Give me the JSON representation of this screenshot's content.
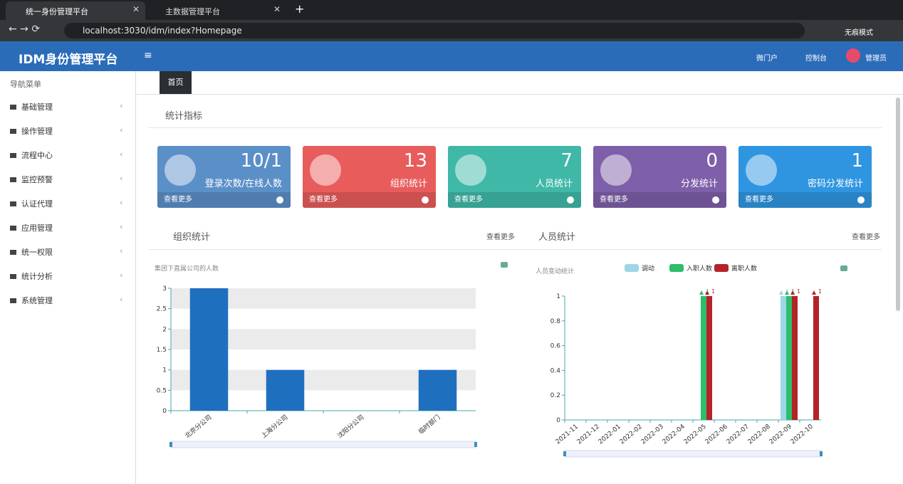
{
  "browser": {
    "tabs": [
      "统一身份管理平台",
      "主数据管理平台"
    ],
    "url": "localhost:3030/idm/index?Homepage",
    "profile": "无痕模式"
  },
  "header": {
    "title": "IDM身份管理平台",
    "links": [
      "微门户",
      "控制台",
      "管理员"
    ]
  },
  "sidebar": {
    "title": "导航菜单",
    "items": [
      "基础管理",
      "操作管理",
      "流程中心",
      "监控预警",
      "认证代理",
      "应用管理",
      "统一权限",
      "统计分析",
      "系统管理"
    ]
  },
  "tabbar": {
    "tabs": [
      "首页"
    ]
  },
  "section": {
    "title": "统计指标"
  },
  "cards": [
    {
      "value": "10/1",
      "label": "登录次数/在线人数",
      "more": "查看更多"
    },
    {
      "value": 13,
      "label": "组织统计",
      "more": "查看更多"
    },
    {
      "value": 7,
      "label": "人员统计",
      "more": "查看更多"
    },
    {
      "value": 0,
      "label": "分发统计",
      "more": "查看更多"
    },
    {
      "value": 1,
      "label": "密码分发统计",
      "more": "查看更多"
    }
  ],
  "panels": [
    {
      "title": "组织统计",
      "more": "查看更多"
    },
    {
      "title": "人员统计",
      "more": "查看更多"
    }
  ],
  "chart_data": [
    {
      "type": "bar",
      "title": "集团下直属公司的人数",
      "categories": [
        "北京分公司",
        "上海分公司",
        "沈阳分公司",
        "临时部门"
      ],
      "values": [
        3,
        1,
        0,
        1
      ],
      "color": "#1f6fbf",
      "ylim": [
        0,
        3
      ],
      "yticks": [
        0,
        0.5,
        1,
        1.5,
        2,
        2.5,
        3
      ],
      "grid": true
    },
    {
      "type": "bar",
      "title": "人员变动统计",
      "categories": [
        "2021-11",
        "2021-12",
        "2022-01",
        "2022-02",
        "2022-03",
        "2022-04",
        "2022-05",
        "2022-06",
        "2022-07",
        "2022-08",
        "2022-09",
        "2022-10"
      ],
      "series": [
        {
          "name": "调动",
          "color": "#9fd6e6",
          "values": [
            0,
            0,
            0,
            0,
            0,
            0,
            0,
            0,
            0,
            0,
            1,
            0
          ]
        },
        {
          "name": "入职人数",
          "color": "#2ebd6b",
          "values": [
            0,
            0,
            0,
            0,
            0,
            0,
            1,
            0,
            0,
            0,
            1,
            0
          ]
        },
        {
          "name": "离职人数",
          "color": "#b52228",
          "values": [
            0,
            0,
            0,
            0,
            0,
            0,
            1,
            0,
            0,
            0,
            1,
            1
          ]
        }
      ],
      "ylim": [
        0,
        1
      ],
      "yticks": [
        0,
        0.2,
        0.4,
        0.6,
        0.8,
        1
      ],
      "grid": false
    }
  ]
}
